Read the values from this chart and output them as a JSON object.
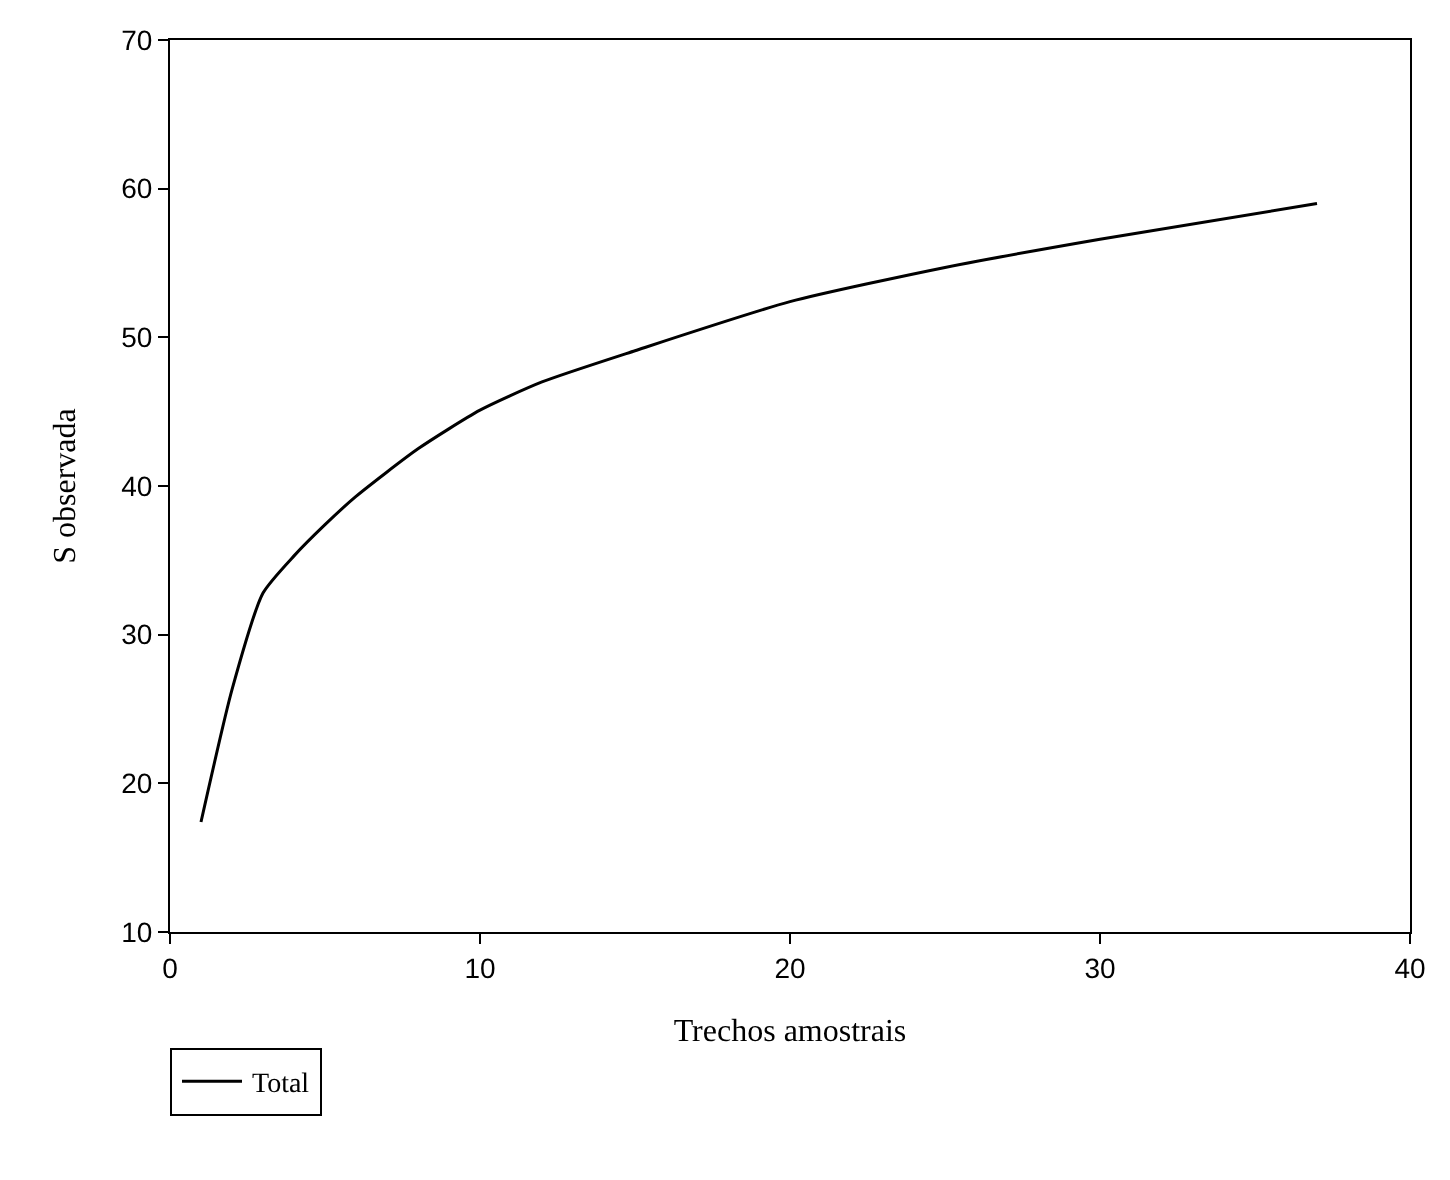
{
  "chart_data": {
    "type": "line",
    "xlabel": "Trechos amostrais",
    "ylabel": "S observada",
    "x": [
      1,
      2,
      3,
      4,
      5,
      6,
      8,
      10,
      12,
      15,
      20,
      25,
      30,
      37
    ],
    "series": [
      {
        "name": "Total",
        "color": "#000000",
        "values": [
          17.4,
          26.3,
          32.8,
          35.3,
          37.4,
          39.3,
          42.5,
          45.1,
          47,
          49.1,
          52.4,
          54.7,
          56.6,
          59
        ]
      }
    ],
    "xlim": [
      0,
      40
    ],
    "xticks": [
      0,
      10,
      20,
      30,
      40
    ],
    "ylim": [
      10,
      70
    ],
    "yticks": [
      10,
      20,
      30,
      40,
      50,
      60,
      70
    ],
    "grid": false,
    "legend": "bottom left",
    "marker": "none",
    "line_style": "solid"
  }
}
